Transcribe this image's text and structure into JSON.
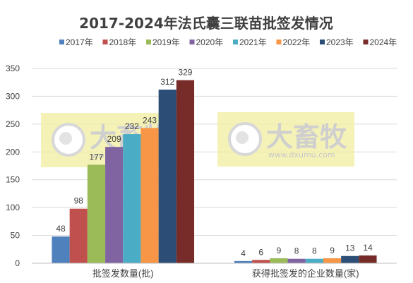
{
  "chart_data": {
    "type": "bar",
    "title": "2017-2024年法氏囊三联苗批签发情况",
    "categories": [
      "批签发数量(批)",
      "获得批签发的企业数量(家)"
    ],
    "series": [
      {
        "name": "2017年",
        "color": "#4f81bd",
        "values": [
          48,
          4
        ]
      },
      {
        "name": "2018年",
        "color": "#c0504d",
        "values": [
          98,
          6
        ]
      },
      {
        "name": "2019年",
        "color": "#9bbb59",
        "values": [
          177,
          9
        ]
      },
      {
        "name": "2020年",
        "color": "#8064a2",
        "values": [
          209,
          8
        ]
      },
      {
        "name": "2021年",
        "color": "#4bacc6",
        "values": [
          232,
          8
        ]
      },
      {
        "name": "2022年",
        "color": "#f79646",
        "values": [
          243,
          9
        ]
      },
      {
        "name": "2023年",
        "color": "#2c4d75",
        "values": [
          312,
          13
        ]
      },
      {
        "name": "2024年",
        "color": "#772c2a",
        "values": [
          329,
          14
        ]
      }
    ],
    "ylim": [
      0,
      350
    ],
    "yticks": [
      0,
      50,
      100,
      150,
      200,
      250,
      300,
      350
    ],
    "grid": true,
    "legend_position": "top"
  },
  "watermark": {
    "text": "大畜牧",
    "url": "www.dxumu.com"
  }
}
